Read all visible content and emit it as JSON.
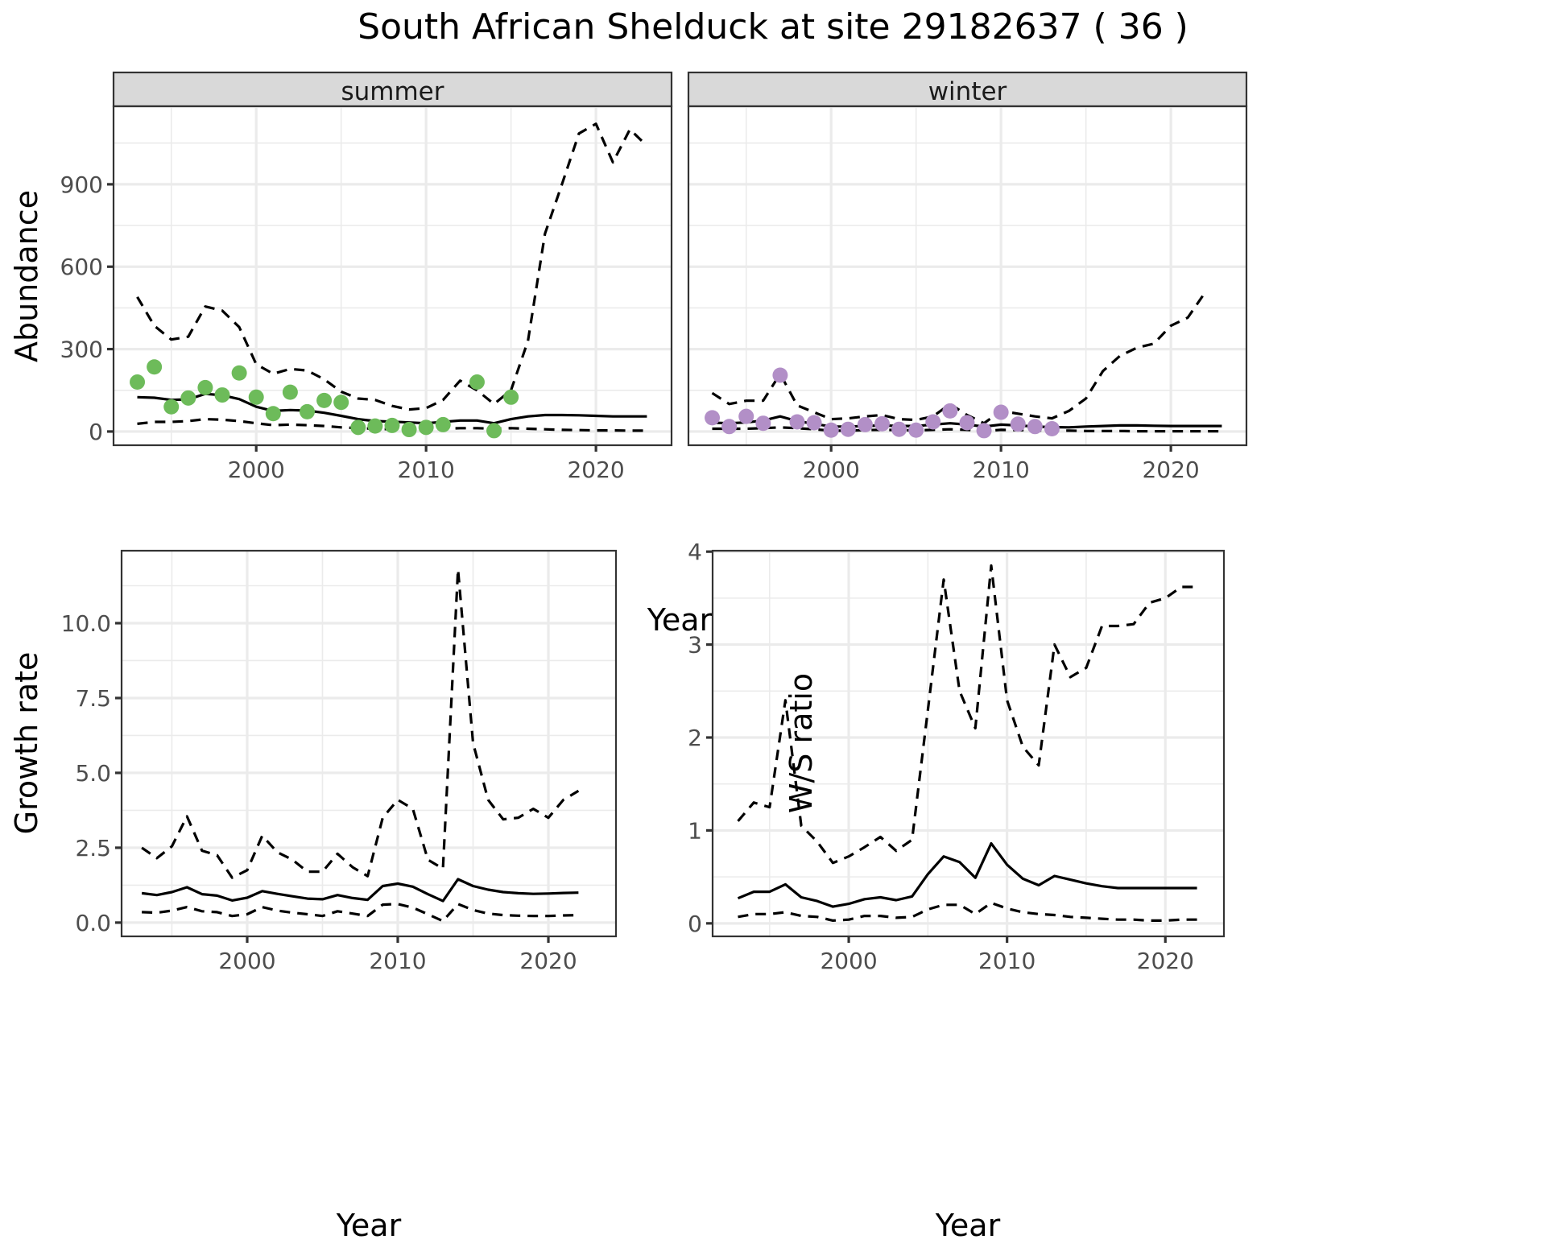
{
  "chart_data": {
    "title": "South African Shelduck at site 29182637 ( 36 )",
    "colors": {
      "summer_points": "#6dbb5a",
      "winter_points": "#b28fc7",
      "lines": "#000000",
      "strip_fill": "#d9d9d9"
    },
    "abundance": {
      "type": "line",
      "ylabel": "Abundance",
      "xlabel": "Year",
      "xlim": [
        1991.6,
        2024.45
      ],
      "ylim": [
        -50,
        1184
      ],
      "xticks": [
        2000,
        2010,
        2020
      ],
      "xtick_labels": [
        "2000",
        "2010",
        "2020"
      ],
      "yticks": [
        0,
        300,
        600,
        900
      ],
      "ytick_labels": [
        "0",
        "300",
        "600",
        "900"
      ],
      "grid": true,
      "facets": [
        {
          "label": "summer",
          "counts": {
            "x": [
              1993,
              1994,
              1995,
              1996,
              1997,
              1998,
              1999,
              2000,
              2001,
              2002,
              2003,
              2004,
              2005,
              2006,
              2007,
              2008,
              2009,
              2010,
              2011,
              2013,
              2014,
              2015
            ],
            "y": [
              180,
              235,
              90,
              122,
              160,
              133,
              213,
              125,
              65,
              143,
              72,
              113,
              106,
              15,
              20,
              22,
              7,
              15,
              25,
              180,
              3,
              125
            ]
          },
          "mean": {
            "x": [
              1993,
              1994,
              1995,
              1996,
              1997,
              1998,
              1999,
              2000,
              2001,
              2002,
              2003,
              2004,
              2005,
              2006,
              2007,
              2008,
              2009,
              2010,
              2011,
              2012,
              2013,
              2014,
              2015,
              2016,
              2017,
              2018,
              2019,
              2020,
              2021,
              2022,
              2023
            ],
            "y": [
              125,
              123,
              115,
              117,
              137,
              132,
              118,
              90,
              75,
              78,
              76,
              68,
              57,
              45,
              38,
              36,
              33,
              30,
              35,
              40,
              40,
              30,
              45,
              55,
              60,
              60,
              59,
              57,
              55,
              55,
              55
            ]
          },
          "upper": {
            "x": [
              1993,
              1994,
              1995,
              1996,
              1997,
              1998,
              1999,
              2000,
              2001,
              2002,
              2003,
              2004,
              2005,
              2006,
              2007,
              2008,
              2009,
              2010,
              2011,
              2012,
              2013,
              2014,
              2015,
              2016,
              2017,
              2018,
              2019,
              2020,
              2021,
              2022,
              2023
            ],
            "y": [
              490,
              385,
              335,
              345,
              455,
              440,
              380,
              245,
              210,
              228,
              222,
              190,
              145,
              120,
              115,
              93,
              80,
              85,
              115,
              185,
              150,
              100,
              150,
              330,
              720,
              900,
              1085,
              1120,
              980,
              1100,
              1040
            ]
          },
          "lower": {
            "x": [
              1993,
              1994,
              1995,
              1996,
              1997,
              1998,
              1999,
              2000,
              2001,
              2002,
              2003,
              2004,
              2005,
              2006,
              2007,
              2008,
              2009,
              2010,
              2011,
              2012,
              2013,
              2014,
              2015,
              2016,
              2017,
              2018,
              2019,
              2020,
              2021,
              2022,
              2023
            ],
            "y": [
              28,
              35,
              35,
              38,
              45,
              43,
              38,
              30,
              23,
              25,
              23,
              20,
              15,
              12,
              10,
              8,
              7,
              8,
              10,
              12,
              12,
              10,
              12,
              10,
              8,
              6,
              5,
              4,
              4,
              3,
              3
            ]
          }
        },
        {
          "label": "winter",
          "counts": {
            "x": [
              1993,
              1994,
              1995,
              1996,
              1997,
              1998,
              1999,
              2000,
              2001,
              2002,
              2003,
              2004,
              2005,
              2006,
              2007,
              2008,
              2009,
              2010,
              2011,
              2012,
              2013
            ],
            "y": [
              50,
              18,
              55,
              30,
              205,
              35,
              32,
              5,
              8,
              25,
              28,
              8,
              5,
              35,
              75,
              32,
              3,
              70,
              27,
              18,
              10
            ]
          },
          "mean": {
            "x": [
              1993,
              1994,
              1995,
              1996,
              1997,
              1998,
              1999,
              2000,
              2001,
              2002,
              2003,
              2004,
              2005,
              2006,
              2007,
              2008,
              2009,
              2010,
              2011,
              2012,
              2013,
              2014,
              2015,
              2016,
              2017,
              2018,
              2019,
              2020,
              2021,
              2022,
              2023
            ],
            "y": [
              32,
              30,
              33,
              40,
              55,
              38,
              28,
              18,
              18,
              20,
              22,
              20,
              20,
              25,
              30,
              25,
              18,
              25,
              22,
              18,
              16,
              15,
              18,
              20,
              22,
              22,
              21,
              20,
              20,
              20,
              20
            ]
          },
          "upper": {
            "x": [
              1993,
              1994,
              1995,
              1996,
              1997,
              1998,
              1999,
              2000,
              2001,
              2002,
              2003,
              2004,
              2005,
              2006,
              2007,
              2008,
              2009,
              2010,
              2011,
              2012,
              2013,
              2014,
              2015,
              2016,
              2017,
              2018,
              2019,
              2020,
              2021,
              2022
            ],
            "y": [
              140,
              100,
              112,
              112,
              210,
              95,
              70,
              45,
              48,
              55,
              60,
              45,
              42,
              55,
              100,
              60,
              30,
              75,
              65,
              55,
              48,
              75,
              120,
              220,
              275,
              305,
              320,
              385,
              415,
              505
            ]
          },
          "lower": {
            "x": [
              1993,
              1994,
              1995,
              1996,
              1997,
              1998,
              1999,
              2000,
              2001,
              2002,
              2003,
              2004,
              2005,
              2006,
              2007,
              2008,
              2009,
              2010,
              2011,
              2012,
              2013,
              2014,
              2015,
              2016,
              2017,
              2018,
              2019,
              2020,
              2021,
              2022,
              2023
            ],
            "y": [
              10,
              10,
              10,
              12,
              15,
              12,
              8,
              3,
              3,
              5,
              6,
              5,
              4,
              6,
              8,
              6,
              2,
              6,
              5,
              4,
              3,
              3,
              2,
              2,
              2,
              1,
              1,
              1,
              1,
              1,
              1
            ]
          }
        }
      ]
    },
    "growth_rate": {
      "type": "line",
      "ylabel": "Growth rate",
      "xlabel": "Year",
      "xlim": [
        1991.66,
        2024.49
      ],
      "ylim": [
        -0.46,
        12.42
      ],
      "xticks": [
        2000,
        2010,
        2020
      ],
      "xtick_labels": [
        "2000",
        "2010",
        "2020"
      ],
      "yticks": [
        0,
        2.5,
        5,
        7.5,
        10
      ],
      "ytick_labels": [
        "0.0",
        "2.5",
        "5.0",
        "7.5",
        "10.0"
      ],
      "grid": true,
      "mean": {
        "x": [
          1993,
          1994,
          1995,
          1996,
          1997,
          1998,
          1999,
          2000,
          2001,
          2002,
          2003,
          2004,
          2005,
          2006,
          2007,
          2008,
          2009,
          2010,
          2011,
          2012,
          2013,
          2014,
          2015,
          2016,
          2017,
          2018,
          2019,
          2020,
          2021,
          2022
        ],
        "y": [
          0.98,
          0.92,
          1.02,
          1.18,
          0.95,
          0.9,
          0.74,
          0.83,
          1.05,
          0.96,
          0.88,
          0.8,
          0.78,
          0.92,
          0.82,
          0.76,
          1.22,
          1.3,
          1.2,
          0.95,
          0.72,
          1.45,
          1.22,
          1.1,
          1.02,
          0.98,
          0.96,
          0.97,
          0.99,
          1.0
        ]
      },
      "upper": {
        "x": [
          1993,
          1994,
          1995,
          1996,
          1997,
          1998,
          1999,
          2000,
          2001,
          2002,
          2003,
          2004,
          2005,
          2006,
          2007,
          2008,
          2009,
          2010,
          2011,
          2012,
          2013,
          2014,
          2015,
          2016,
          2017,
          2018,
          2019,
          2020,
          2021,
          2022
        ],
        "y": [
          2.5,
          2.15,
          2.55,
          3.55,
          2.4,
          2.25,
          1.5,
          1.75,
          2.9,
          2.35,
          2.1,
          1.7,
          1.7,
          2.3,
          1.85,
          1.55,
          3.5,
          4.1,
          3.8,
          2.1,
          1.8,
          11.8,
          6.0,
          4.1,
          3.45,
          3.5,
          3.8,
          3.5,
          4.1,
          4.4
        ]
      },
      "lower": {
        "x": [
          1993,
          1994,
          1995,
          1996,
          1997,
          1998,
          1999,
          2000,
          2001,
          2002,
          2003,
          2004,
          2005,
          2006,
          2007,
          2008,
          2009,
          2010,
          2011,
          2012,
          2013,
          2014,
          2015,
          2016,
          2017,
          2018,
          2019,
          2020,
          2021,
          2022
        ],
        "y": [
          0.35,
          0.33,
          0.4,
          0.52,
          0.38,
          0.35,
          0.22,
          0.28,
          0.52,
          0.4,
          0.33,
          0.28,
          0.22,
          0.38,
          0.3,
          0.22,
          0.6,
          0.62,
          0.5,
          0.28,
          0.05,
          0.62,
          0.42,
          0.3,
          0.25,
          0.23,
          0.22,
          0.22,
          0.24,
          0.25
        ]
      }
    },
    "ws_ratio": {
      "type": "line",
      "ylabel": "W/S ratio",
      "xlabel": "Year",
      "xlim": [
        1991.4,
        2023.7
      ],
      "ylim": [
        -0.14,
        4.01
      ],
      "xticks": [
        2000,
        2010,
        2020
      ],
      "xtick_labels": [
        "2000",
        "2010",
        "2020"
      ],
      "yticks": [
        0,
        1,
        2,
        3,
        4
      ],
      "ytick_labels": [
        "0",
        "1",
        "2",
        "3",
        "4"
      ],
      "grid": true,
      "mean": {
        "x": [
          1993,
          1994,
          1995,
          1996,
          1997,
          1998,
          1999,
          2000,
          2001,
          2002,
          2003,
          2004,
          2005,
          2006,
          2007,
          2008,
          2009,
          2010,
          2011,
          2012,
          2013,
          2014,
          2015,
          2016,
          2017,
          2018,
          2019,
          2020,
          2021,
          2022
        ],
        "y": [
          0.27,
          0.34,
          0.34,
          0.42,
          0.28,
          0.24,
          0.18,
          0.21,
          0.26,
          0.28,
          0.25,
          0.29,
          0.53,
          0.72,
          0.66,
          0.49,
          0.86,
          0.63,
          0.48,
          0.41,
          0.51,
          0.47,
          0.43,
          0.4,
          0.38,
          0.38,
          0.38,
          0.38,
          0.38,
          0.38
        ]
      },
      "upper": {
        "x": [
          1993,
          1994,
          1995,
          1996,
          1997,
          1998,
          1999,
          2000,
          2001,
          2002,
          2003,
          2004,
          2005,
          2006,
          2007,
          2008,
          2009,
          2010,
          2011,
          2012,
          2013,
          2014,
          2015,
          2016,
          2017,
          2018,
          2019,
          2020,
          2021,
          2022
        ],
        "y": [
          1.1,
          1.3,
          1.25,
          2.4,
          1.05,
          0.88,
          0.65,
          0.72,
          0.82,
          0.93,
          0.78,
          0.9,
          2.3,
          3.7,
          2.5,
          2.1,
          3.85,
          2.4,
          1.9,
          1.7,
          3.0,
          2.65,
          2.75,
          3.2,
          3.2,
          3.22,
          3.45,
          3.5,
          3.62,
          3.62
        ]
      },
      "lower": {
        "x": [
          1993,
          1994,
          1995,
          1996,
          1997,
          1998,
          1999,
          2000,
          2001,
          2002,
          2003,
          2004,
          2005,
          2006,
          2007,
          2008,
          2009,
          2010,
          2011,
          2012,
          2013,
          2014,
          2015,
          2016,
          2017,
          2018,
          2019,
          2020,
          2021,
          2022
        ],
        "y": [
          0.07,
          0.1,
          0.1,
          0.12,
          0.08,
          0.07,
          0.03,
          0.04,
          0.08,
          0.08,
          0.06,
          0.07,
          0.15,
          0.2,
          0.2,
          0.1,
          0.22,
          0.16,
          0.12,
          0.1,
          0.09,
          0.07,
          0.06,
          0.05,
          0.04,
          0.04,
          0.03,
          0.03,
          0.04,
          0.04
        ]
      }
    }
  }
}
